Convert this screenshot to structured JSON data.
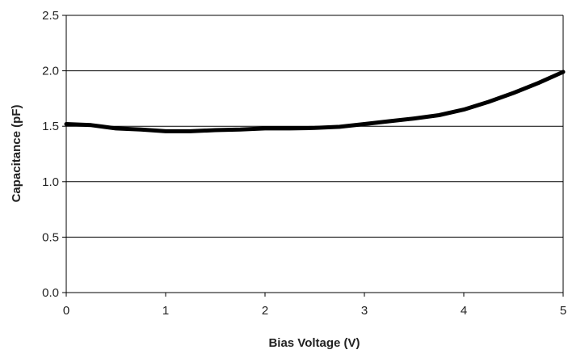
{
  "chart_data": {
    "type": "line",
    "title": "",
    "xlabel": "Bias Voltage (V)",
    "ylabel": "Capacitance (pF)",
    "xlim": [
      0,
      5
    ],
    "ylim": [
      0,
      2.5
    ],
    "x_ticks": [
      "0",
      "1",
      "2",
      "3",
      "4",
      "5"
    ],
    "y_ticks": [
      "0.0",
      "0.5",
      "1.0",
      "1.5",
      "2.0",
      "2.5"
    ],
    "grid": "horizontal",
    "legend": "none",
    "line_color": "#000000",
    "series": [
      {
        "x": [
          0,
          0.25,
          0.5,
          0.75,
          1.0,
          1.25,
          1.5,
          1.75,
          2.0,
          2.25,
          2.5,
          2.75,
          3.0,
          3.25,
          3.5,
          3.75,
          4.0,
          4.25,
          4.5,
          4.75,
          5.0
        ],
        "values": [
          1.52,
          1.51,
          1.48,
          1.47,
          1.455,
          1.455,
          1.465,
          1.47,
          1.48,
          1.48,
          1.485,
          1.495,
          1.52,
          1.545,
          1.57,
          1.6,
          1.65,
          1.72,
          1.8,
          1.89,
          1.99
        ]
      }
    ]
  }
}
